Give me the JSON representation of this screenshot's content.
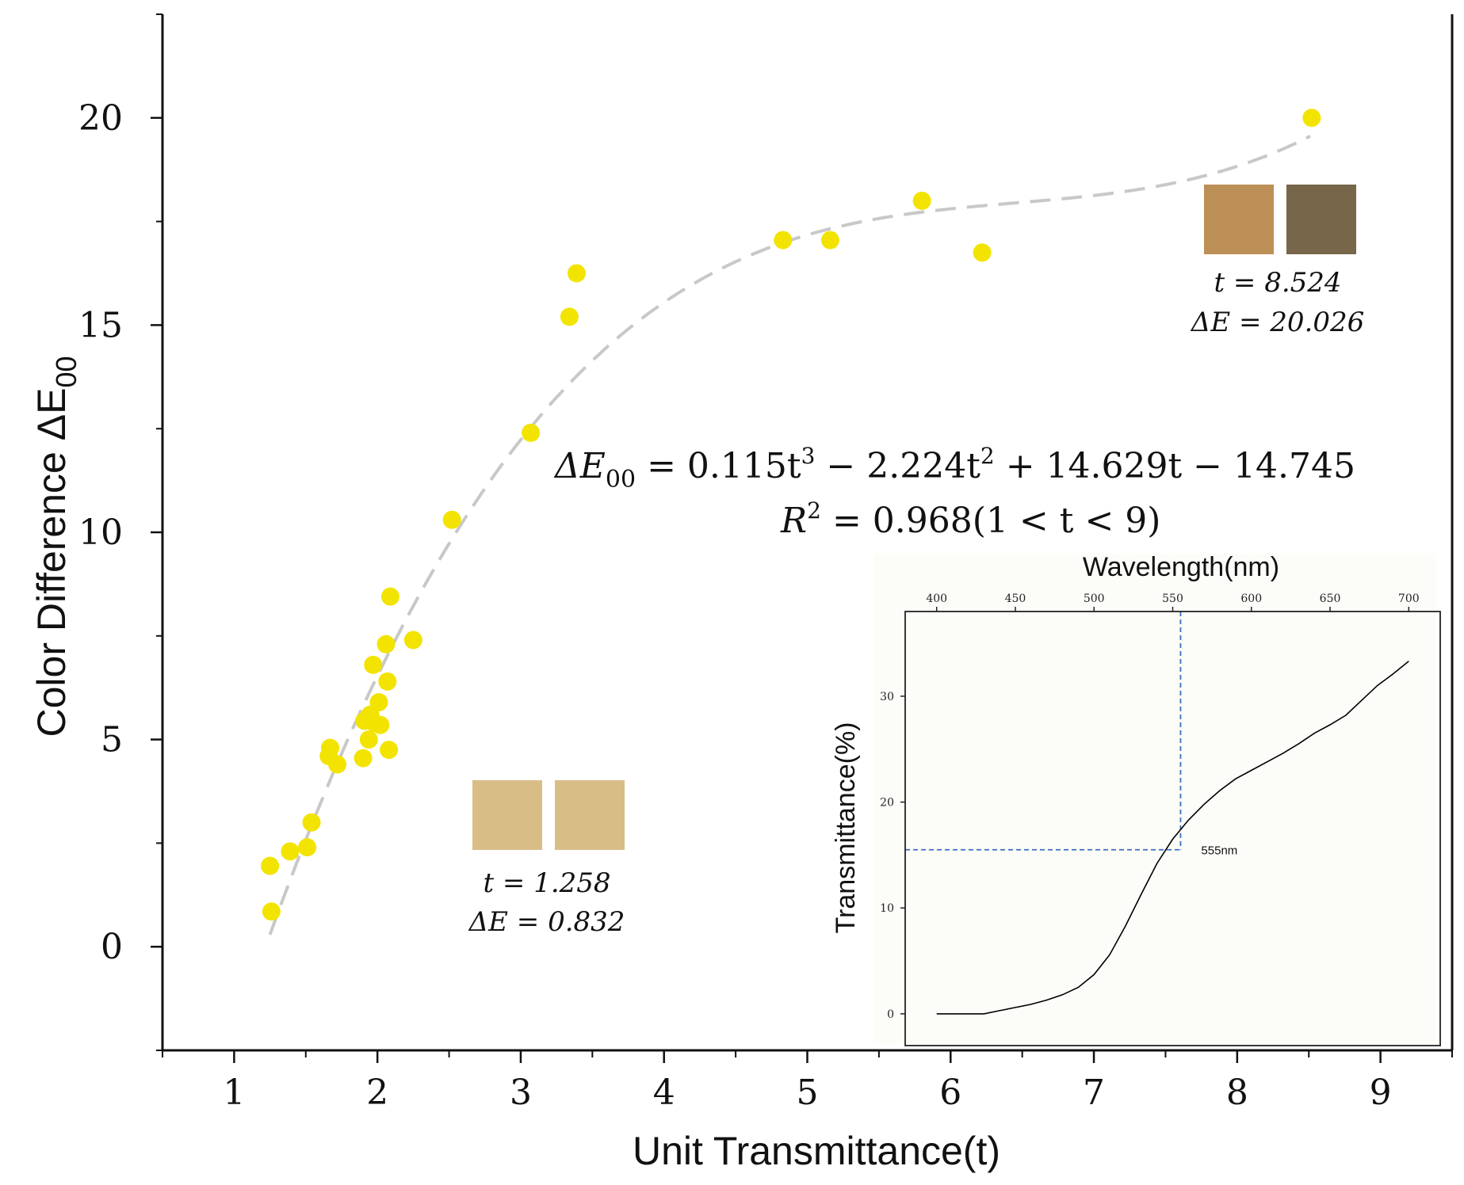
{
  "chart_data": [
    {
      "type": "scatter",
      "title": "",
      "xlabel": "Unit Transmittance(t)",
      "ylabel": "Color Difference ΔE",
      "ylabel_sub": "00",
      "xlim": [
        0.5,
        9.5
      ],
      "ylim": [
        -2.5,
        22.5
      ],
      "xticks": [
        1,
        2,
        3,
        4,
        5,
        6,
        7,
        8,
        9
      ],
      "xtick_labels": [
        "1",
        "2",
        "3",
        "4",
        "5",
        "6",
        "7",
        "8",
        "9"
      ],
      "yticks": [
        0,
        5,
        10,
        15,
        20
      ],
      "ytick_labels": [
        "0",
        "5",
        "10",
        "15",
        "20"
      ],
      "point_color": "#f2e400",
      "fit_color": "#c8c8c8",
      "series": [
        {
          "name": "samples",
          "points": [
            [
              1.25,
              1.95
            ],
            [
              1.26,
              0.85
            ],
            [
              1.39,
              2.3
            ],
            [
              1.51,
              2.4
            ],
            [
              1.54,
              3.0
            ],
            [
              1.66,
              4.6
            ],
            [
              1.67,
              4.8
            ],
            [
              1.72,
              4.4
            ],
            [
              1.9,
              4.55
            ],
            [
              1.91,
              5.45
            ],
            [
              1.94,
              5.0
            ],
            [
              1.95,
              5.6
            ],
            [
              1.97,
              6.8
            ],
            [
              1.98,
              5.4
            ],
            [
              2.01,
              5.9
            ],
            [
              2.02,
              5.35
            ],
            [
              2.06,
              7.3
            ],
            [
              2.07,
              6.4
            ],
            [
              2.08,
              4.75
            ],
            [
              2.09,
              8.45
            ],
            [
              2.25,
              7.4
            ],
            [
              2.52,
              10.3
            ],
            [
              3.07,
              12.4
            ],
            [
              3.34,
              15.2
            ],
            [
              3.39,
              16.25
            ],
            [
              4.83,
              17.05
            ],
            [
              5.16,
              17.05
            ],
            [
              5.8,
              18.0
            ],
            [
              6.22,
              16.75
            ],
            [
              8.52,
              20.0
            ]
          ]
        },
        {
          "name": "cubic fit",
          "style": "dashed",
          "coefficients": [
            0.115,
            -2.224,
            14.629,
            -14.745
          ],
          "domain": [
            1.25,
            8.52
          ]
        }
      ],
      "equation": {
        "lhs": "ΔE",
        "lhs_sub": "00",
        "rhs_1": " = 0.115t",
        "rhs_exp_1": "3",
        "rhs_2": " − 2.224t",
        "rhs_exp_2": "2",
        "rhs_3": " + 14.629t − 14.745",
        "r2_lhs": "R",
        "r2_exp": "2",
        "r2_rhs": " = 0.968(1 < t < 9)"
      },
      "annotations": [
        {
          "t_text": "t = 1.258",
          "de_text": "ΔE = 0.832",
          "swatches": [
            "#d9bd87",
            "#d9bd87"
          ]
        },
        {
          "t_text": "t = 8.524",
          "de_text": "ΔE = 20.026",
          "swatches": [
            "#bb8f55",
            "#776649"
          ]
        }
      ]
    },
    {
      "type": "line",
      "title": "",
      "xlabel": "Wavelength(nm)",
      "ylabel": "Transmittance(%)",
      "xlim": [
        380,
        720
      ],
      "ylim": [
        -3,
        38
      ],
      "xticks": [
        400,
        450,
        500,
        550,
        600,
        650,
        700
      ],
      "xtick_labels": [
        "400",
        "450",
        "500",
        "550",
        "600",
        "650",
        "700"
      ],
      "yticks": [
        0,
        10,
        20,
        30
      ],
      "ytick_labels": [
        "0",
        "10",
        "20",
        "30"
      ],
      "line_color": "#000000",
      "marker_color": "#3b6fc4",
      "marker": {
        "x": 555,
        "y": 15.5,
        "label": "555nm"
      },
      "series": [
        {
          "name": "transmittance",
          "x": [
            400,
            410,
            420,
            430,
            440,
            450,
            460,
            470,
            480,
            490,
            500,
            510,
            520,
            530,
            540,
            550,
            560,
            570,
            580,
            590,
            600,
            610,
            620,
            630,
            640,
            650,
            660,
            670,
            680,
            690,
            700
          ],
          "y": [
            0,
            0,
            0,
            0,
            0.3,
            0.6,
            0.9,
            1.3,
            1.8,
            2.5,
            3.7,
            5.6,
            8.3,
            11.3,
            14.2,
            16.5,
            18.3,
            19.8,
            21.1,
            22.2,
            23.0,
            23.8,
            24.6,
            25.5,
            26.5,
            27.3,
            28.2,
            29.6,
            31.0,
            32.1,
            33.3
          ]
        }
      ]
    }
  ]
}
